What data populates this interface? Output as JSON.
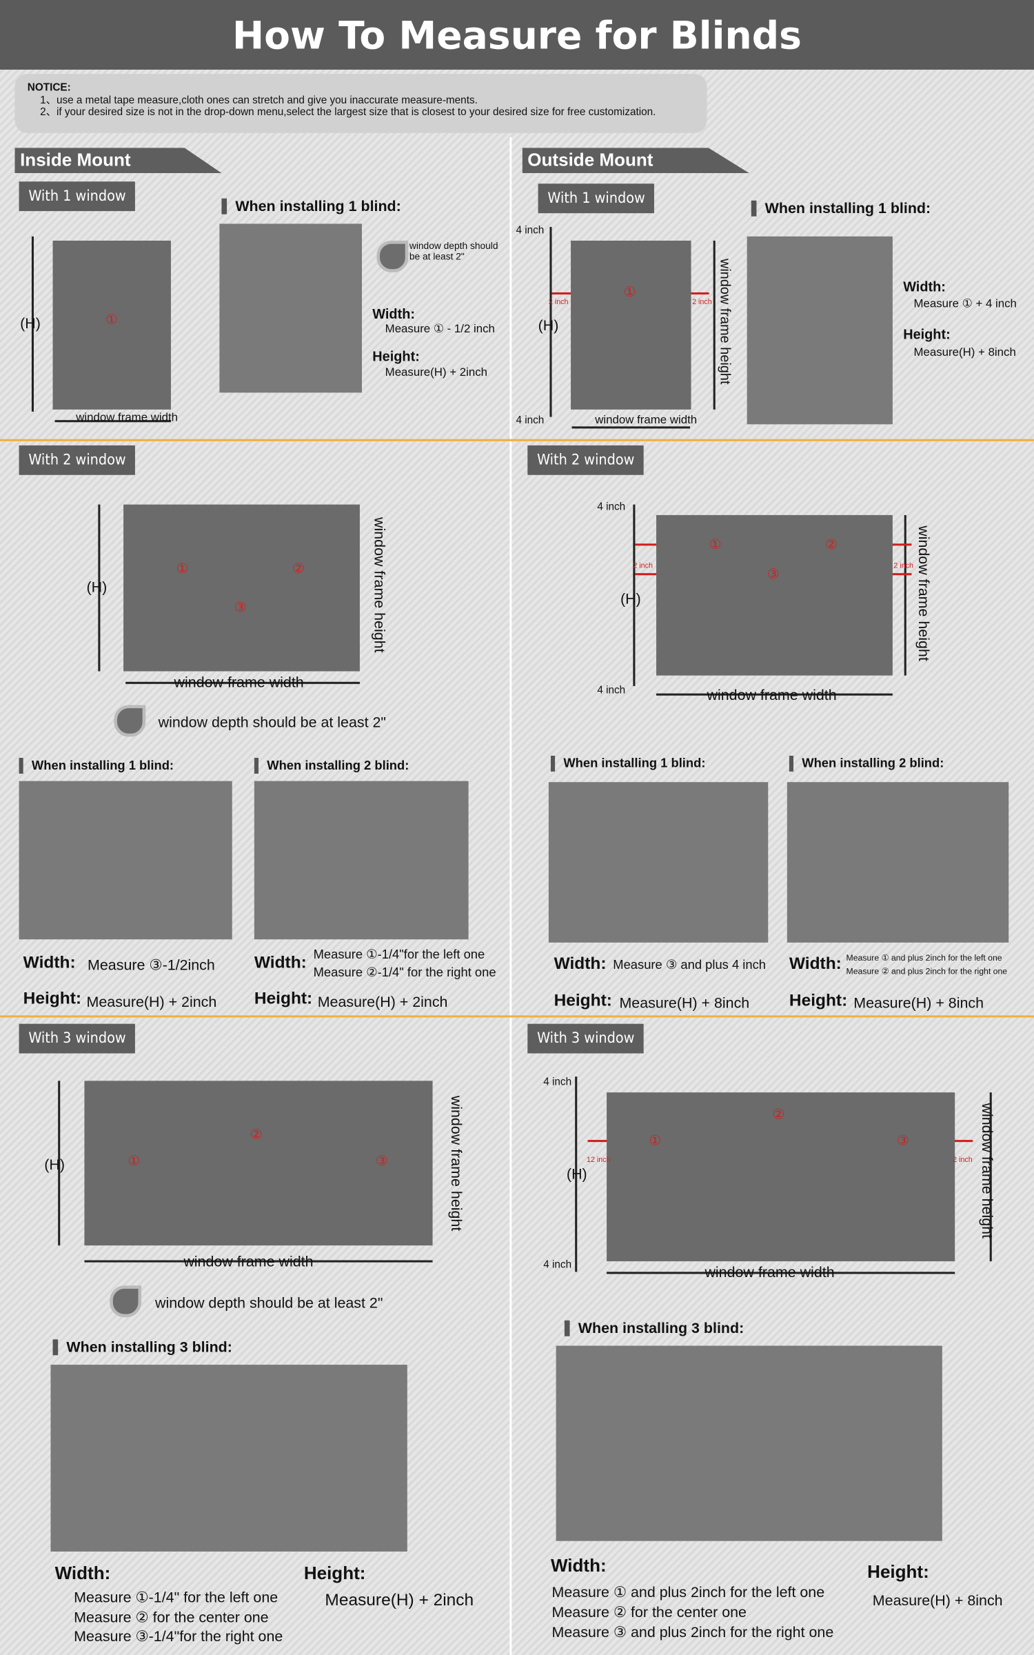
{
  "title": "How To Measure for Blinds",
  "notice": {
    "heading": "NOTICE:",
    "items": [
      "1、use a metal tape measure,cloth ones can stretch and give you inaccurate measure-ments.",
      "2、if your desired size is not in the drop-down menu,select the largest size that is closest to your desired size for free customization."
    ]
  },
  "common": {
    "h": "(H)",
    "frame_width": "window frame width",
    "frame_height": "window frame height",
    "four_inch": "4 inch",
    "two_inch": "2 inch",
    "twelve_inch": "12 inch",
    "m1": "①",
    "m2": "②",
    "m3": "③",
    "width_label": "Width:",
    "height_label": "Height:"
  },
  "inside": {
    "title": "Inside Mount",
    "s1": {
      "badge": "With 1 window",
      "install": "When installing 1 blind:",
      "depth": "window depth should be at least 2\"",
      "width": "Measure ① - 1/2 inch",
      "height": "Measure(H) + 2inch"
    },
    "s2": {
      "badge": "With 2 window",
      "depth": "window depth should be at least 2\"",
      "install1": "When installing 1 blind:",
      "install2": "When installing 2 blind:",
      "width1": "Measure ③-1/2inch",
      "height1": "Measure(H) + 2inch",
      "width2": [
        "Measure ①-1/4\"for the left one",
        "Measure ②-1/4\" for the right one"
      ],
      "height2": "Measure(H) + 2inch"
    },
    "s3": {
      "badge": "With 3 window",
      "depth": "window depth should be at least 2\"",
      "install": "When installing 3 blind:",
      "width": [
        "Measure ①-1/4\" for the left one",
        "Measure ② for the center one",
        "Measure ③-1/4\"for the right one"
      ],
      "height": "Measure(H) + 2inch"
    }
  },
  "outside": {
    "title": "Outside Mount",
    "s1": {
      "badge": "With 1 window",
      "install": "When installing 1 blind:",
      "width": "Measure ① + 4 inch",
      "height": "Measure(H) + 8inch"
    },
    "s2": {
      "badge": "With 2 window",
      "install1": "When installing 1 blind:",
      "install2": "When installing 2 blind:",
      "width1": "Measure ③ and plus 4 inch",
      "height1": "Measure(H) + 8inch",
      "width2": [
        "Measure ① and plus 2inch for the left one",
        "Measure ② and plus 2inch for the right one"
      ],
      "height2": "Measure(H) + 8inch"
    },
    "s3": {
      "badge": "With 3 window",
      "install": "When installing 3 blind:",
      "width": [
        "Measure ① and plus 2inch for the left one",
        "Measure ② for the center one",
        "Measure ③ and plus 2inch for the right one"
      ],
      "height": "Measure(H) + 8inch"
    }
  },
  "colors": {
    "header": "#5b5b5b",
    "accent_line": "#f0b040",
    "measure": "#d21f1f",
    "frame": "#6b6b6b"
  }
}
